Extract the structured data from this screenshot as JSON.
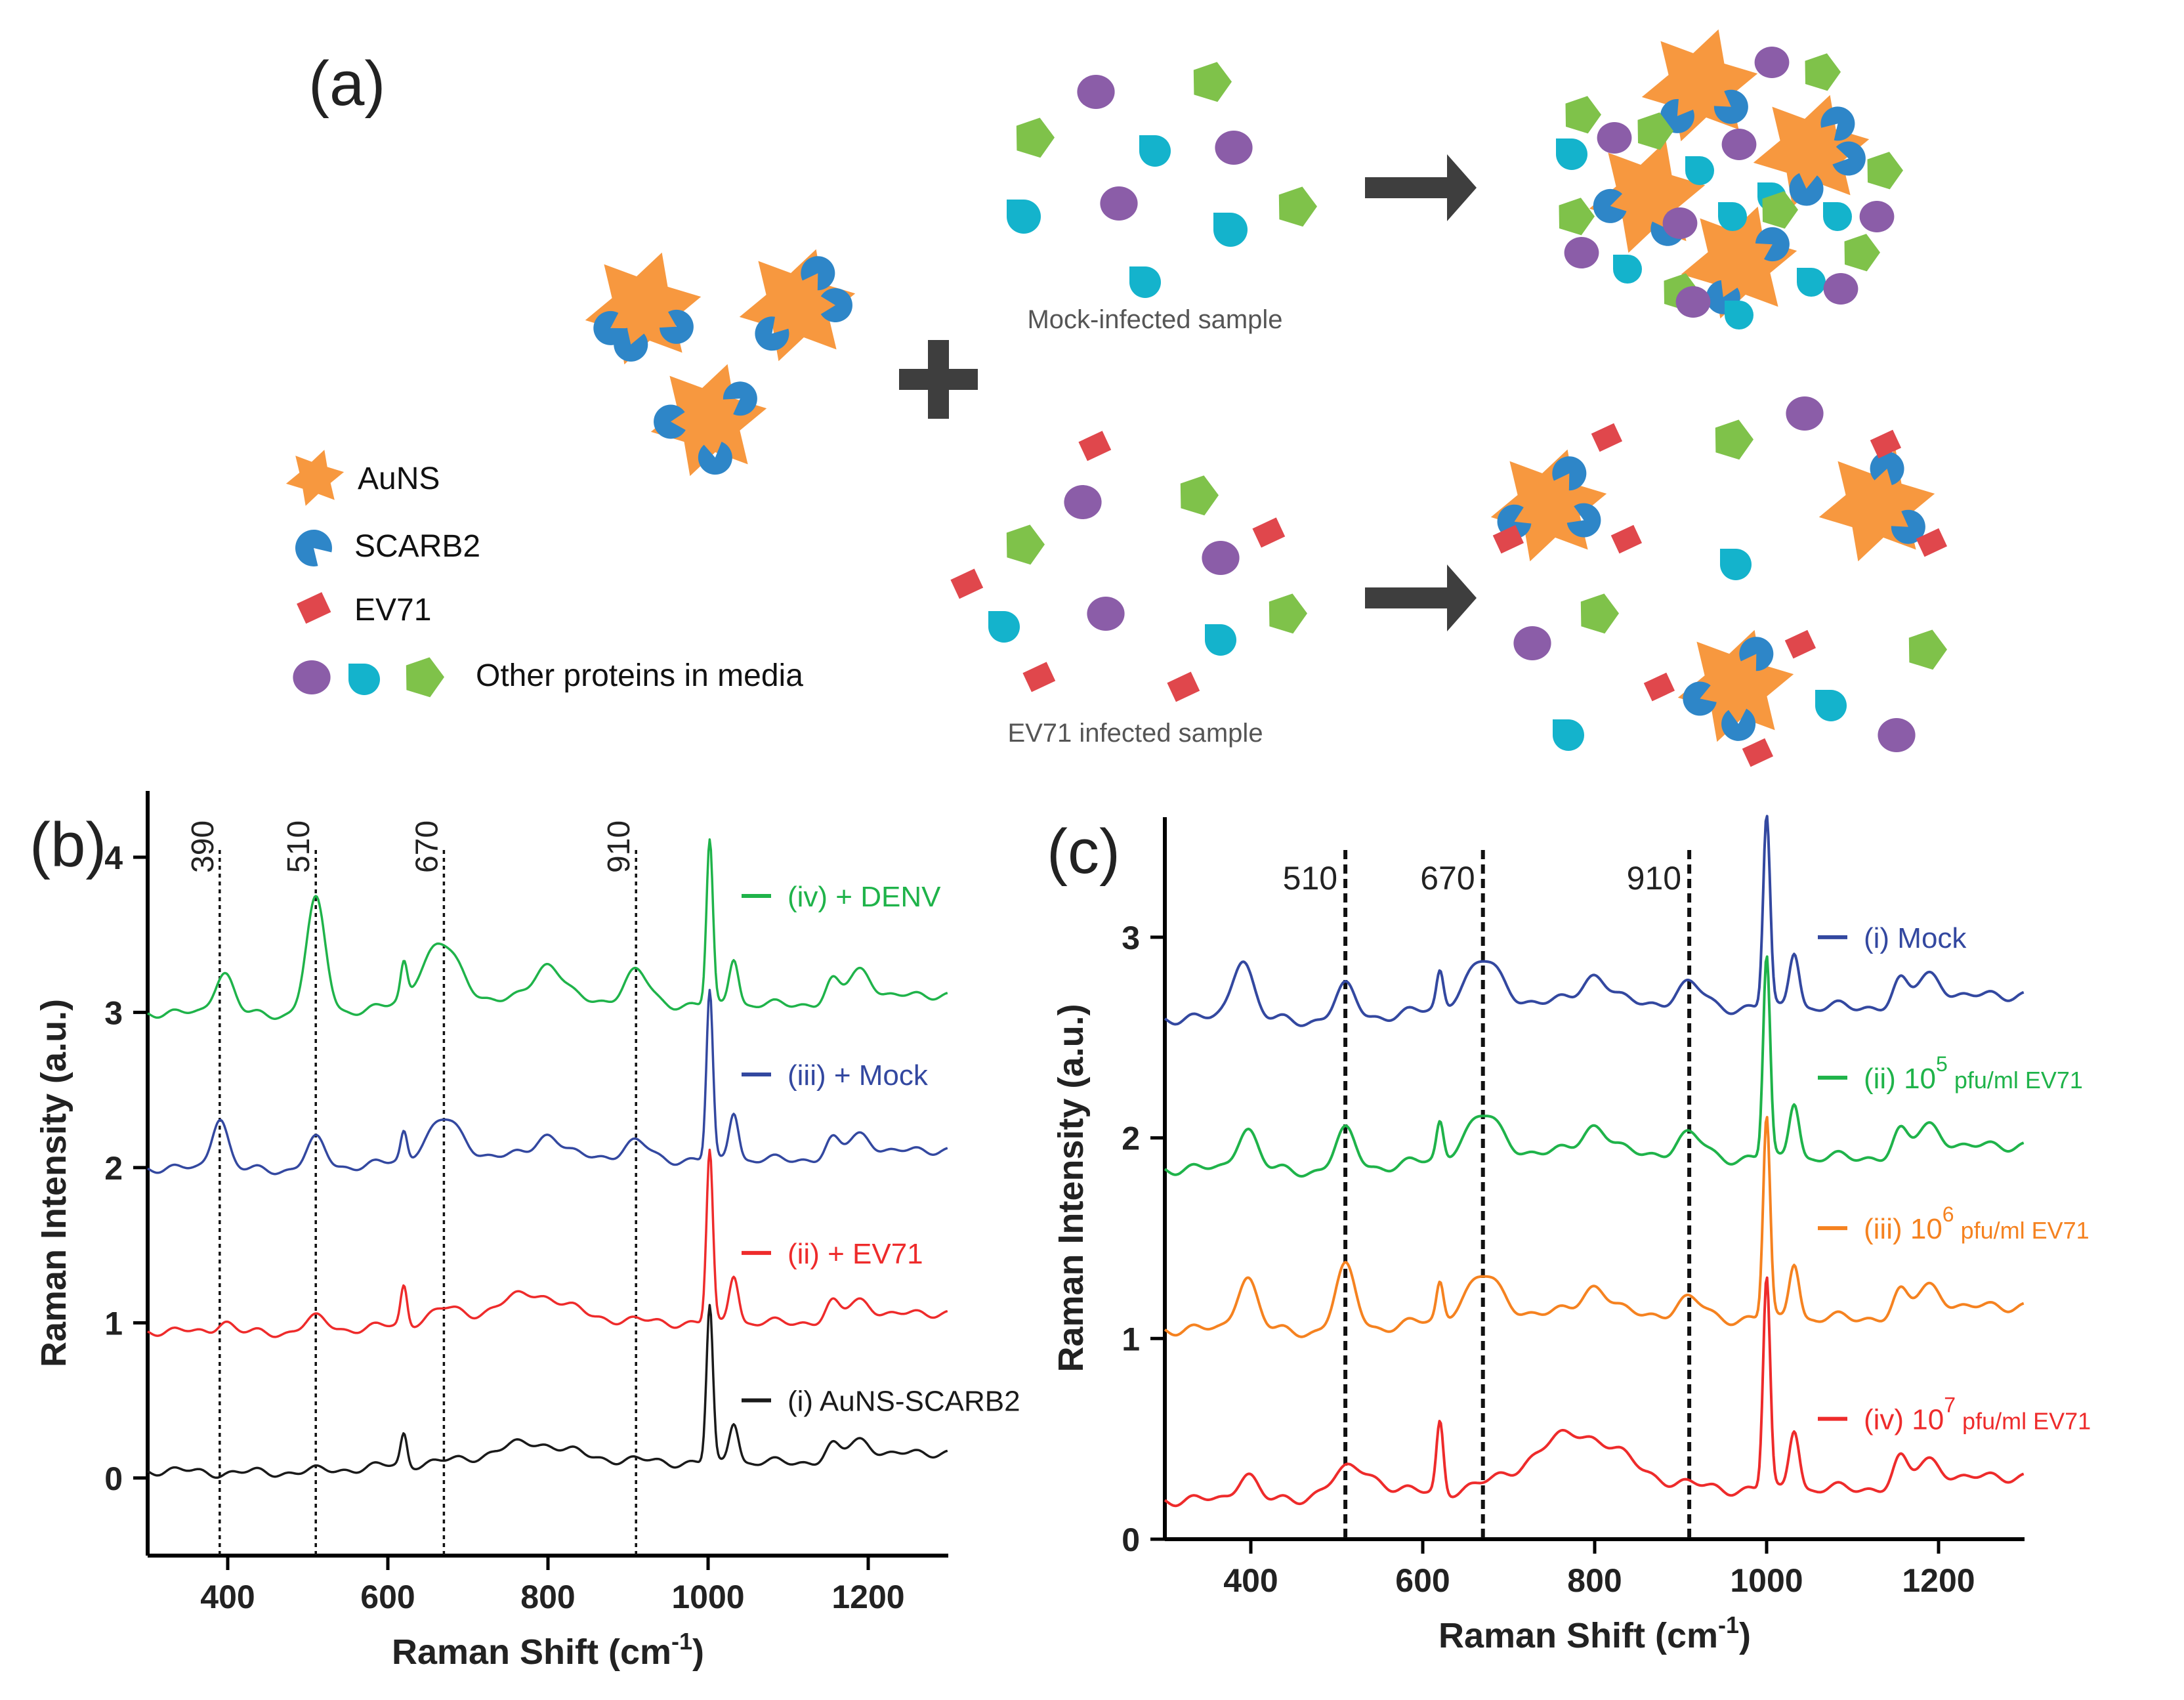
{
  "panel_a": {
    "label": "(a)",
    "mock_caption": "Mock-infected sample",
    "ev71_caption": "EV71 infected sample",
    "legend": {
      "ausn": "AuNS",
      "scarb2": "SCARB2",
      "ev71": "EV71",
      "other": "Other proteins in media"
    }
  },
  "colors": {
    "ausn": "#F7983F",
    "scarb2": "#2E86C8",
    "ev71": "#E0474C",
    "purple": "#8B5DA8",
    "cyan": "#14B3CC",
    "green": "#7FC24A",
    "arrow": "#3E3E3E"
  },
  "chart_data": [
    {
      "type": "line",
      "label": "(b)",
      "xlabel": "Raman Shift (cm",
      "xlabel_sup": "-1",
      "xlabel_end": ")",
      "ylabel": "Raman Intensity (a.u.)",
      "xlim": [
        300,
        1300
      ],
      "ylim": [
        -0.5,
        4.3
      ],
      "xticks": [
        400,
        600,
        800,
        1000,
        1200
      ],
      "yticks": [
        0,
        1,
        2,
        3,
        4
      ],
      "markers": [
        {
          "x": 390,
          "label": "390"
        },
        {
          "x": 510,
          "label": "510"
        },
        {
          "x": 670,
          "label": "670"
        },
        {
          "x": 910,
          "label": "910"
        }
      ],
      "series": [
        {
          "name": "(iv) + DENV",
          "color": "#1FB34A",
          "offset": 3.0,
          "label_y": 3.75,
          "peaks": [
            [
              395,
              0.28,
              12
            ],
            [
              510,
              0.72,
              12
            ],
            [
              620,
              0.22,
              4
            ],
            [
              665,
              0.38,
              25
            ],
            [
              800,
              0.24,
              18
            ],
            [
              910,
              0.2,
              15
            ],
            [
              1002,
              1.05,
              4
            ],
            [
              1032,
              0.32,
              6
            ],
            [
              1155,
              0.12,
              8
            ],
            [
              1190,
              0.2,
              15
            ]
          ]
        },
        {
          "name": "(iii) + Mock",
          "color": "#3348A0",
          "offset": 2.0,
          "label_y": 2.6,
          "peaks": [
            [
              390,
              0.35,
              10
            ],
            [
              510,
              0.18,
              12
            ],
            [
              620,
              0.18,
              4
            ],
            [
              670,
              0.25,
              22
            ],
            [
              800,
              0.14,
              15
            ],
            [
              910,
              0.1,
              15
            ],
            [
              1002,
              1.08,
              4
            ],
            [
              1032,
              0.33,
              6
            ],
            [
              1155,
              0.1,
              8
            ],
            [
              1190,
              0.14,
              15
            ]
          ]
        },
        {
          "name": "(ii) + EV71",
          "color": "#EE2B2B",
          "offset": 0.95,
          "label_y": 1.45,
          "peaks": [
            [
              395,
              0.08,
              10
            ],
            [
              510,
              0.08,
              15
            ],
            [
              620,
              0.25,
              4
            ],
            [
              670,
              0.08,
              20
            ],
            [
              780,
              0.16,
              40
            ],
            [
              1002,
              1.1,
              4
            ],
            [
              1032,
              0.33,
              6
            ],
            [
              1155,
              0.1,
              8
            ],
            [
              1190,
              0.12,
              15
            ]
          ]
        },
        {
          "name": "(i) AuNS-SCARB2",
          "color": "#1A1A1A",
          "offset": 0.05,
          "label_y": 0.5,
          "peaks": [
            [
              620,
              0.2,
              4
            ],
            [
              780,
              0.1,
              40
            ],
            [
              1002,
              1.0,
              4
            ],
            [
              1032,
              0.28,
              6
            ],
            [
              1155,
              0.08,
              8
            ],
            [
              1190,
              0.12,
              15
            ]
          ]
        }
      ]
    },
    {
      "type": "line",
      "label": "(c)",
      "xlabel": "Raman Shift (cm",
      "xlabel_sup": "-1",
      "xlabel_end": ")",
      "ylabel": "Raman Intensity (a.u.)",
      "xlim": [
        300,
        1300
      ],
      "ylim": [
        0,
        3.5
      ],
      "xticks": [
        400,
        600,
        800,
        1000,
        1200
      ],
      "yticks": [
        0,
        1,
        2,
        3
      ],
      "markers": [
        {
          "x": 510,
          "label": "510"
        },
        {
          "x": 670,
          "label": "670"
        },
        {
          "x": 910,
          "label": "910"
        }
      ],
      "series": [
        {
          "name": "(i) Mock",
          "sup": "",
          "suffix": "",
          "color": "#3348A0",
          "offset": 2.6,
          "label_y": 3.0,
          "peaks": [
            [
              390,
              0.32,
              12
            ],
            [
              510,
              0.15,
              12
            ],
            [
              620,
              0.18,
              4
            ],
            [
              670,
              0.22,
              22
            ],
            [
              800,
              0.14,
              15
            ],
            [
              910,
              0.1,
              15
            ],
            [
              1000,
              0.95,
              4
            ],
            [
              1032,
              0.3,
              6
            ],
            [
              1155,
              0.1,
              8
            ],
            [
              1190,
              0.14,
              15
            ]
          ]
        },
        {
          "name": "(ii) 10",
          "sup": "5",
          "suffix": " pfu/ml EV71",
          "color": "#1FB34A",
          "offset": 1.85,
          "label_y": 2.3,
          "peaks": [
            [
              395,
              0.22,
              12
            ],
            [
              510,
              0.18,
              12
            ],
            [
              620,
              0.18,
              4
            ],
            [
              670,
              0.2,
              22
            ],
            [
              800,
              0.14,
              15
            ],
            [
              910,
              0.1,
              15
            ],
            [
              1000,
              1.0,
              4
            ],
            [
              1032,
              0.3,
              6
            ],
            [
              1155,
              0.1,
              8
            ],
            [
              1190,
              0.14,
              15
            ]
          ]
        },
        {
          "name": "(iii) 10",
          "sup": "6",
          "suffix": " pfu/ml EV71",
          "color": "#F58220",
          "offset": 1.05,
          "label_y": 1.55,
          "peaks": [
            [
              395,
              0.28,
              12
            ],
            [
              510,
              0.3,
              12
            ],
            [
              620,
              0.18,
              4
            ],
            [
              670,
              0.2,
              22
            ],
            [
              800,
              0.14,
              15
            ],
            [
              910,
              0.08,
              15
            ],
            [
              1000,
              1.0,
              4
            ],
            [
              1032,
              0.3,
              6
            ],
            [
              1155,
              0.1,
              8
            ],
            [
              1190,
              0.14,
              15
            ]
          ]
        },
        {
          "name": "(iv) 10",
          "sup": "7",
          "suffix": " pfu/ml EV71",
          "color": "#EE2B2B",
          "offset": 0.2,
          "label_y": 0.6,
          "peaks": [
            [
              395,
              0.15,
              12
            ],
            [
              520,
              0.15,
              30
            ],
            [
              620,
              0.35,
              4
            ],
            [
              780,
              0.25,
              50
            ],
            [
              1000,
              1.05,
              4
            ],
            [
              1032,
              0.32,
              6
            ],
            [
              1155,
              0.12,
              8
            ],
            [
              1190,
              0.12,
              15
            ]
          ]
        }
      ]
    }
  ]
}
